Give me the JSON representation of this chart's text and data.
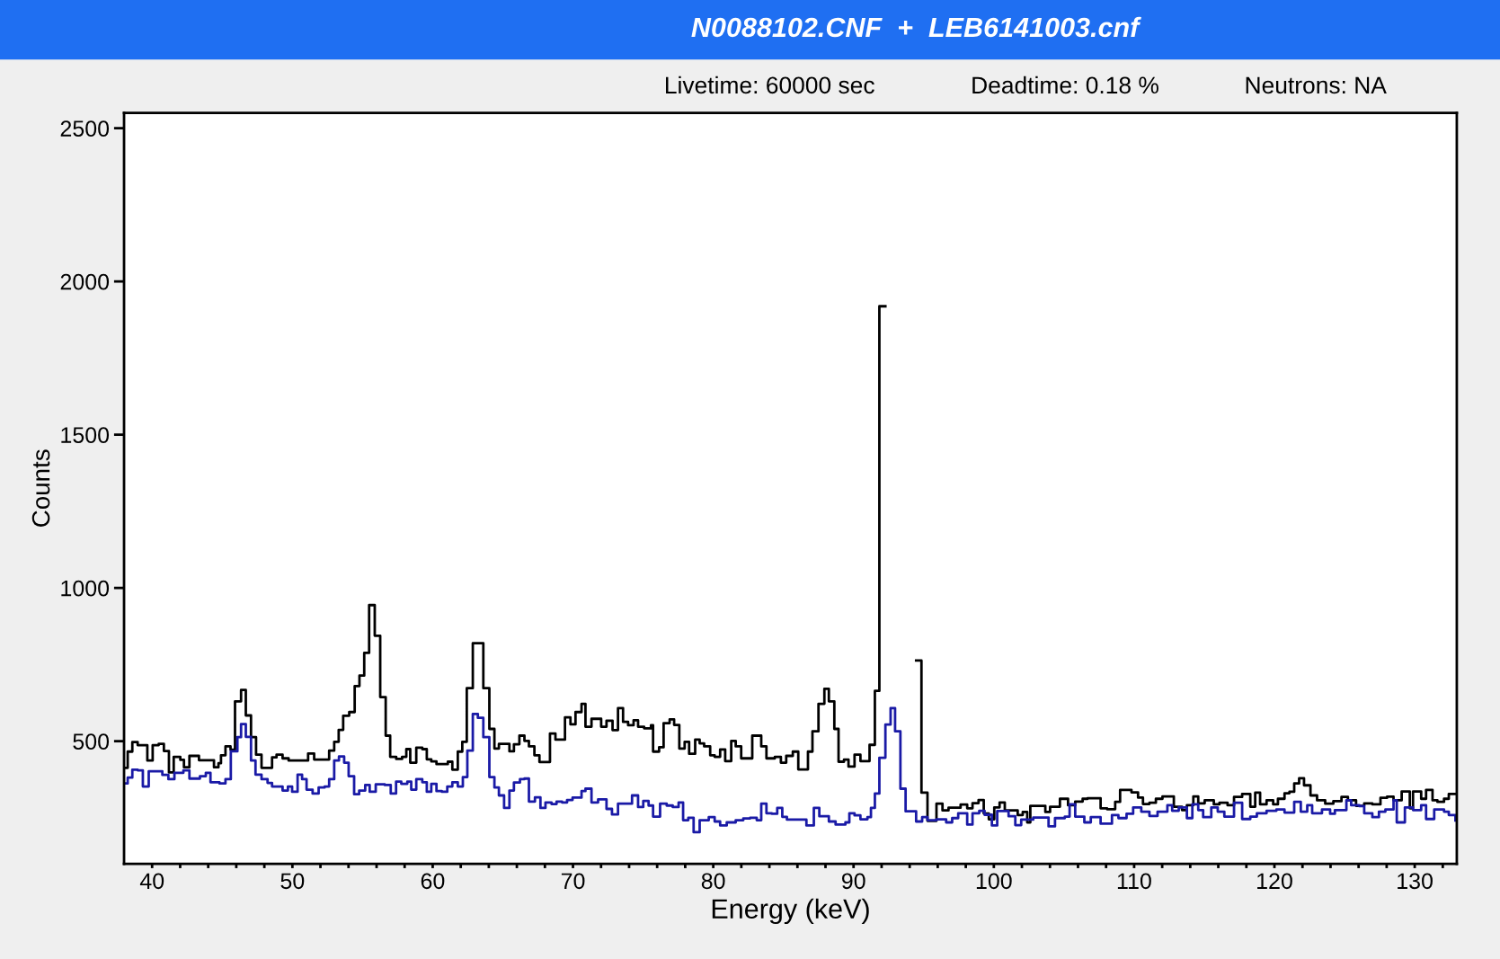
{
  "chart_data": {
    "type": "step",
    "title": "N0088102.CNF  +  LEB6141003.cnf",
    "annotations": [
      "Livetime: 60000 sec",
      "Deadtime: 0.18 %",
      "Neutrons: NA"
    ],
    "xlabel": "Energy (keV)",
    "ylabel": "Counts",
    "xlim": [
      38,
      133
    ],
    "ylim": [
      100,
      2550
    ],
    "xticks": [
      40,
      {
        "value": 42,
        "label": null
      },
      {
        "value": 44,
        "label": null
      },
      {
        "value": 46,
        "label": null
      },
      {
        "value": 48,
        "label": null
      },
      50,
      {
        "value": 52,
        "label": null
      },
      {
        "value": 54,
        "label": null
      },
      {
        "value": 56,
        "label": null
      },
      {
        "value": 58,
        "label": null
      },
      60,
      {
        "value": 62,
        "label": null
      },
      {
        "value": 64,
        "label": null
      },
      {
        "value": 66,
        "label": null
      },
      {
        "value": 68,
        "label": null
      },
      70,
      {
        "value": 72,
        "label": null
      },
      {
        "value": 74,
        "label": null
      },
      {
        "value": 76,
        "label": null
      },
      {
        "value": 78,
        "label": null
      },
      80,
      {
        "value": 82,
        "label": null
      },
      {
        "value": 84,
        "label": null
      },
      {
        "value": 86,
        "label": null
      },
      {
        "value": 88,
        "label": null
      },
      90,
      {
        "value": 92,
        "label": null
      },
      {
        "value": 94,
        "label": null
      },
      {
        "value": 96,
        "label": null
      },
      {
        "value": 98,
        "label": null
      },
      100,
      {
        "value": 102,
        "label": null
      },
      {
        "value": 104,
        "label": null
      },
      {
        "value": 106,
        "label": null
      },
      {
        "value": 108,
        "label": null
      },
      110,
      {
        "value": 112,
        "label": null
      },
      {
        "value": 114,
        "label": null
      },
      {
        "value": 116,
        "label": null
      },
      {
        "value": 118,
        "label": null
      },
      120,
      {
        "value": 122,
        "label": null
      },
      {
        "value": 124,
        "label": null
      },
      {
        "value": 126,
        "label": null
      },
      {
        "value": 128,
        "label": null
      },
      130,
      {
        "value": 132,
        "label": null
      }
    ],
    "yticks": [
      500,
      1000,
      1500,
      2000,
      2500
    ],
    "grid": false,
    "line_style": "solid",
    "series": [
      {
        "color": "#000000",
        "x": [
          38.0,
          38.26,
          38.59,
          38.97,
          39.66,
          40.04,
          40.47,
          40.84,
          41.2,
          41.54,
          42.01,
          42.27,
          42.66,
          43.34,
          44.41,
          44.73,
          44.91,
          45.23,
          45.59,
          45.91,
          46.34,
          46.68,
          47.05,
          47.41,
          47.8,
          48.55,
          48.87,
          49.3,
          49.73,
          51.12,
          51.55,
          52.62,
          52.98,
          53.3,
          53.62,
          54.05,
          54.44,
          54.78,
          55.12,
          55.47,
          55.87,
          56.26,
          56.65,
          56.97,
          57.4,
          57.82,
          58.12,
          58.4,
          58.83,
          59.26,
          59.58,
          59.9,
          60.27,
          61.08,
          61.4,
          61.79,
          62.11,
          62.43,
          62.86,
          63.61,
          64.04,
          64.4,
          64.72,
          65.47,
          65.79,
          66.18,
          66.54,
          66.86,
          67.25,
          67.61,
          68.36,
          68.75,
          69.43,
          69.82,
          70.18,
          70.61,
          70.89,
          71.32,
          72.01,
          72.39,
          72.82,
          73.21,
          73.57,
          73.93,
          74.32,
          74.64,
          75.07,
          75.56,
          75.71,
          76.14,
          76.46,
          76.89,
          77.21,
          77.58,
          77.96,
          78.28,
          78.71,
          79.03,
          79.35,
          79.78,
          80.1,
          80.49,
          80.85,
          81.28,
          81.6,
          81.99,
          82.78,
          83.42,
          83.79,
          84.39,
          84.82,
          85.2,
          85.67,
          86.06,
          86.75,
          87.07,
          87.5,
          87.92,
          88.24,
          88.63,
          88.93,
          89.32,
          89.64,
          90.07,
          90.49,
          91.14,
          91.52,
          91.84,
          92.27,
          94.46,
          94.84,
          95.27,
          95.91,
          96.34,
          96.77,
          97.63,
          98.1,
          98.48,
          98.91,
          99.28,
          99.64,
          100.03,
          100.41,
          100.78,
          101.7,
          102.06,
          102.38,
          102.6,
          103.67,
          104.01,
          104.71,
          105.29,
          105.8,
          106.33,
          106.68,
          107.61,
          108.07,
          108.65,
          109.0,
          109.81,
          110.28,
          110.63,
          111.09,
          111.55,
          112.02,
          112.83,
          113.41,
          113.76,
          114.22,
          114.57,
          115.03,
          115.68,
          116.08,
          116.66,
          117.12,
          117.7,
          118.28,
          118.63,
          118.98,
          119.44,
          119.91,
          120.25,
          120.72,
          121.07,
          121.41,
          121.76,
          122.11,
          122.57,
          123.04,
          123.62,
          124.2,
          124.78,
          125.24,
          125.82,
          126.4,
          126.98,
          127.56,
          128.03,
          128.49,
          129.07,
          129.65,
          129.88,
          130.46,
          130.81,
          131.27,
          131.62,
          132.09,
          132.43,
          132.9
        ],
        "values": [
          413,
          466,
          497,
          487,
          437,
          487,
          491,
          468,
          398,
          449,
          439,
          415,
          452,
          438,
          415,
          428,
          454,
          483,
          472,
          630,
          667,
          584,
          513,
          456,
          413,
          447,
          456,
          444,
          437,
          460,
          440,
          469,
          498,
          537,
          583,
          595,
          680,
          714,
          788,
          944,
          844,
          644,
          518,
          449,
          442,
          449,
          474,
          430,
          479,
          474,
          441,
          434,
          425,
          433,
          407,
          466,
          498,
          673,
          820,
          673,
          540,
          476,
          491,
          467,
          490,
          518,
          501,
          483,
          454,
          432,
          525,
          505,
          578,
          555,
          595,
          622,
          547,
          573,
          547,
          567,
          536,
          608,
          563,
          552,
          568,
          547,
          542,
          552,
          466,
          480,
          559,
          571,
          553,
          476,
          498,
          459,
          505,
          493,
          483,
          454,
          449,
          473,
          435,
          501,
          483,
          444,
          518,
          483,
          444,
          449,
          430,
          452,
          466,
          408,
          466,
          532,
          622,
          671,
          630,
          540,
          433,
          440,
          417,
          456,
          435,
          488,
          664,
          1919,
          null,
          763,
          332,
          240,
          296,
          274,
          283,
          293,
          281,
          298,
          308,
          264,
          245,
          284,
          300,
          274,
          259,
          269,
          235,
          289,
          269,
          286,
          312,
          291,
          303,
          312,
          314,
          281,
          278,
          302,
          341,
          333,
          316,
          295,
          299,
          312,
          320,
          286,
          275,
          291,
          320,
          297,
          307,
          294,
          299,
          291,
          318,
          328,
          286,
          332,
          294,
          307,
          294,
          312,
          330,
          335,
          362,
          379,
          356,
          323,
          307,
          296,
          304,
          318,
          307,
          289,
          297,
          294,
          315,
          319,
          307,
          336,
          281,
          336,
          312,
          341,
          307,
          302,
          312,
          328,
          328
        ]
      },
      {
        "color": "#1a1aa6",
        "x": [
          38.0,
          38.26,
          38.59,
          38.97,
          39.34,
          39.76,
          40.73,
          41.16,
          41.59,
          42.23,
          42.66,
          43.41,
          43.83,
          44.16,
          44.8,
          45.23,
          45.61,
          46.08,
          46.34,
          46.68,
          47.05,
          47.37,
          47.8,
          48.23,
          48.55,
          49.3,
          49.68,
          49.98,
          50.37,
          50.69,
          51.01,
          51.44,
          51.87,
          52.3,
          52.62,
          52.98,
          53.32,
          53.69,
          54.01,
          54.4,
          54.76,
          55.19,
          55.51,
          55.94,
          56.58,
          57.01,
          57.39,
          57.76,
          58.19,
          58.47,
          58.83,
          59.26,
          59.58,
          59.9,
          60.27,
          60.65,
          61.04,
          61.4,
          61.79,
          62.15,
          62.47,
          62.86,
          63.22,
          63.61,
          64.04,
          64.4,
          64.72,
          65.09,
          65.47,
          65.79,
          66.22,
          66.54,
          66.86,
          67.29,
          67.68,
          68.04,
          68.47,
          68.83,
          69.22,
          69.58,
          69.97,
          70.61,
          70.89,
          71.32,
          71.79,
          72.39,
          72.78,
          73.21,
          74.21,
          74.64,
          75.01,
          75.39,
          75.71,
          76.21,
          76.68,
          77.11,
          77.53,
          77.85,
          78.22,
          78.6,
          79.03,
          79.68,
          80.1,
          80.49,
          80.96,
          81.6,
          82.14,
          82.63,
          83.1,
          83.42,
          83.79,
          84.17,
          84.56,
          84.92,
          85.25,
          86.64,
          87.17,
          87.56,
          88.24,
          88.72,
          89.42,
          89.7,
          90.07,
          90.49,
          90.99,
          91.24,
          91.52,
          91.84,
          92.27,
          92.64,
          92.96,
          93.34,
          93.71,
          94.46,
          94.89,
          95.27,
          95.91,
          96.6,
          97.03,
          97.46,
          98.1,
          98.48,
          98.96,
          99.34,
          99.86,
          100.24,
          101.05,
          101.53,
          101.95,
          102.81,
          103.9,
          104.36,
          105.06,
          105.4,
          105.8,
          106.45,
          106.91,
          107.61,
          108.42,
          108.88,
          109.46,
          109.93,
          110.51,
          111.09,
          111.67,
          112.37,
          112.71,
          113.18,
          113.76,
          114.15,
          114.57,
          114.92,
          115.5,
          115.96,
          116.43,
          117.12,
          117.7,
          118.28,
          118.75,
          119.44,
          120.14,
          120.72,
          121.41,
          121.88,
          122.34,
          122.69,
          123.39,
          123.97,
          124.31,
          125.13,
          125.47,
          126.05,
          126.4,
          126.98,
          127.45,
          127.91,
          128.49,
          128.72,
          129.3,
          129.88,
          130.46,
          130.81,
          131.39,
          132.09,
          132.43,
          132.9
        ],
        "values": [
          362,
          381,
          407,
          405,
          352,
          402,
          390,
          376,
          397,
          405,
          378,
          386,
          397,
          366,
          362,
          376,
          467,
          513,
          556,
          514,
          437,
          391,
          376,
          364,
          352,
          339,
          352,
          335,
          391,
          376,
          342,
          329,
          349,
          352,
          376,
          437,
          450,
          430,
          386,
          327,
          339,
          357,
          335,
          359,
          357,
          329,
          368,
          361,
          368,
          342,
          376,
          366,
          335,
          361,
          337,
          335,
          352,
          366,
          352,
          383,
          469,
          589,
          576,
          513,
          383,
          349,
          323,
          282,
          339,
          365,
          376,
          378,
          303,
          317,
          282,
          300,
          295,
          303,
          300,
          308,
          316,
          337,
          345,
          300,
          310,
          279,
          261,
          296,
          323,
          285,
          305,
          290,
          254,
          296,
          290,
          285,
          300,
          242,
          250,
          203,
          242,
          252,
          238,
          225,
          235,
          242,
          248,
          250,
          242,
          296,
          265,
          263,
          282,
          253,
          244,
          225,
          282,
          255,
          238,
          228,
          235,
          265,
          258,
          245,
          252,
          282,
          329,
          446,
          554,
          608,
          532,
          345,
          271,
          238,
          252,
          242,
          245,
          235,
          249,
          265,
          228,
          265,
          273,
          260,
          225,
          272,
          255,
          226,
          244,
          251,
          222,
          249,
          254,
          294,
          254,
          235,
          252,
          231,
          259,
          249,
          263,
          284,
          270,
          256,
          270,
          291,
          273,
          284,
          249,
          294,
          275,
          252,
          284,
          270,
          254,
          299,
          246,
          254,
          265,
          273,
          277,
          267,
          302,
          270,
          291,
          265,
          277,
          263,
          275,
          307,
          291,
          288,
          265,
          252,
          270,
          277,
          307,
          235,
          284,
          275,
          291,
          246,
          277,
          270,
          259,
          241
        ]
      }
    ]
  }
}
